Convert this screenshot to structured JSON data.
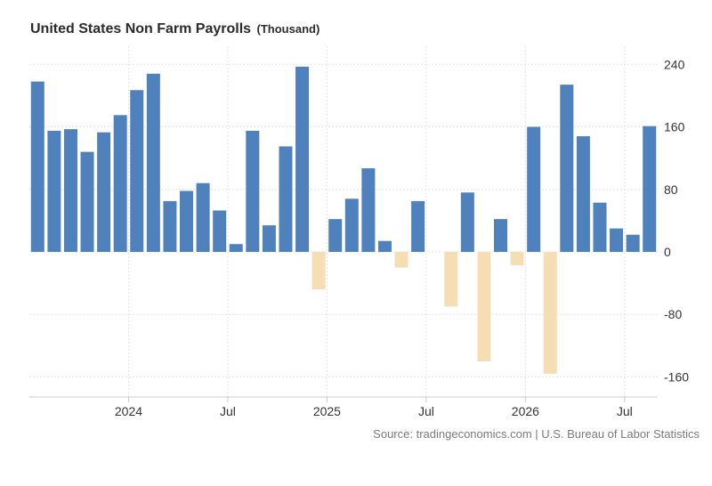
{
  "title": "United States Non Farm Payrolls",
  "unit_label": "(Thousand)",
  "source": "Source: tradingeconomics.com | U.S. Bureau of Labor Statistics",
  "colors": {
    "positive": "#4f81bd",
    "negative": "#f5deb3",
    "grid": "#e3e3e3",
    "axis": "#cccccc"
  },
  "chart_data": {
    "type": "bar",
    "title": "United States Non Farm Payrolls",
    "ylabel": "",
    "xlabel": "",
    "ylim": [
      -190,
      255
    ],
    "yticks": [
      240,
      160,
      80,
      0,
      -80,
      -160
    ],
    "grid": true,
    "legend": "none",
    "x_ticks": [
      {
        "label": "2024",
        "index": 5.5
      },
      {
        "label": "Jul",
        "index": 11.5
      },
      {
        "label": "2025",
        "index": 17.5
      },
      {
        "label": "Jul",
        "index": 23.5
      },
      {
        "label": "2026",
        "index": 29.5
      },
      {
        "label": "Jul",
        "index": 35.5
      }
    ],
    "values": [
      218,
      155,
      157,
      128,
      153,
      175,
      207,
      228,
      65,
      78,
      88,
      53,
      10,
      155,
      34,
      135,
      237,
      -48,
      42,
      68,
      107,
      14,
      -20,
      65,
      0,
      -70,
      76,
      -140,
      42,
      -17,
      160,
      -156,
      214,
      148,
      63,
      30,
      22,
      161
    ]
  }
}
